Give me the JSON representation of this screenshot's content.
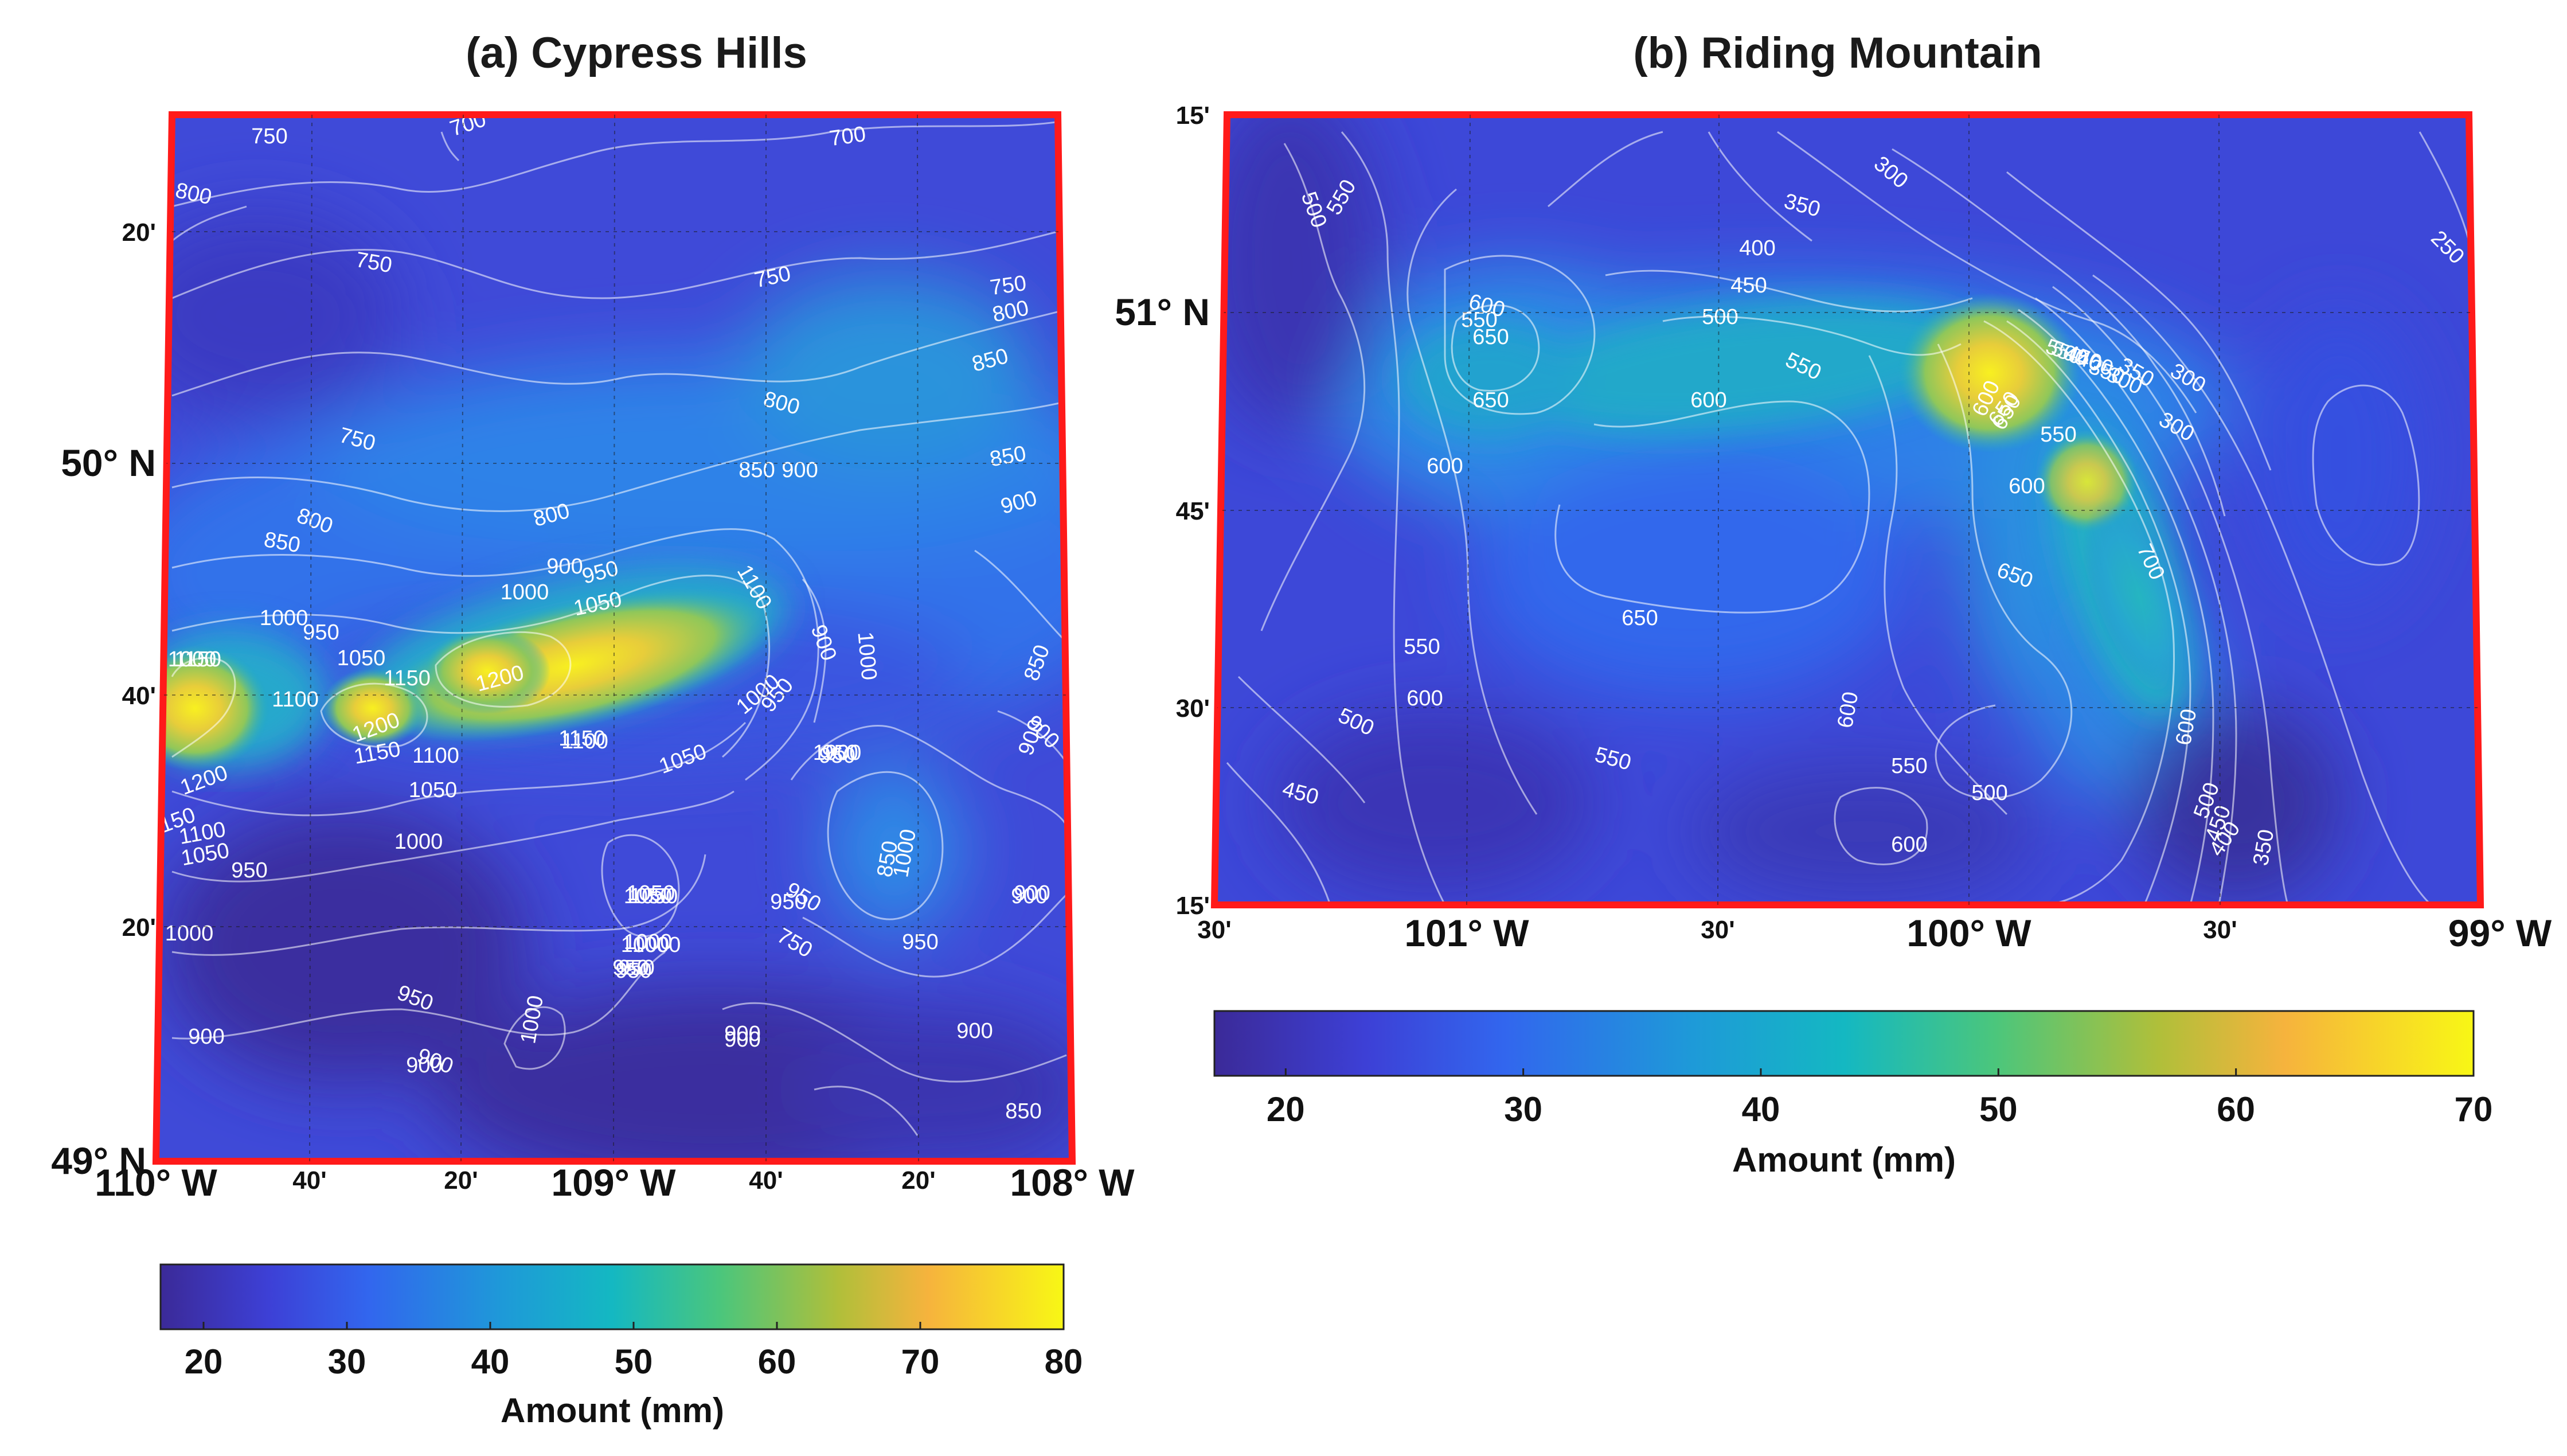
{
  "panel_a": {
    "title": "(a)  Cypress Hills",
    "lon_labels": [
      "110° W",
      "40'",
      "20'",
      "109° W",
      "40'",
      "20'",
      "108° W"
    ],
    "lon_major": [
      true,
      false,
      false,
      true,
      false,
      false,
      true
    ],
    "lat_labels": [
      "49° N",
      "20'",
      "40'",
      "50° N",
      "20'"
    ],
    "lat_major": [
      true,
      false,
      false,
      true,
      false
    ],
    "colorbar_ticks": [
      "20",
      "30",
      "40",
      "50",
      "60",
      "70",
      "80"
    ],
    "colorbar_label": "Amount (mm)",
    "contour_labels": [
      "750",
      "700",
      "700",
      "800",
      "750",
      "750",
      "750",
      "800",
      "850",
      "750",
      "800",
      "850",
      "900",
      "850",
      "800",
      "900",
      "800",
      "850",
      "900",
      "950",
      "1000",
      "1000",
      "1100",
      "1050",
      "1000",
      "900",
      "950",
      "1050",
      "1150",
      "1200",
      "1000",
      "1100",
      "1150",
      "1200",
      "1100",
      "1150",
      "1100",
      "1050",
      "1050",
      "1000",
      "950",
      "1000",
      "1050",
      "1150",
      "1200",
      "1150",
      "1100",
      "1050",
      "1000",
      "900",
      "950",
      "1000",
      "950",
      "850",
      "900",
      "950",
      "1050",
      "1000",
      "950",
      "900",
      "950",
      "950",
      "950",
      "900",
      "900",
      "900",
      "850",
      "900",
      "1000",
      "950",
      "900",
      "950",
      "900",
      "850",
      "750",
      "1000",
      "1000",
      "950",
      "1050",
      "1000",
      "900"
    ]
  },
  "panel_b": {
    "title": "(b)  Riding Mountain",
    "lon_labels": [
      "30'",
      "101° W",
      "30'",
      "100° W",
      "30'",
      "99° W"
    ],
    "lon_major": [
      false,
      true,
      false,
      true,
      false,
      true
    ],
    "lat_labels": [
      "15'",
      "30'",
      "45'",
      "51° N",
      "15'"
    ],
    "lat_major": [
      false,
      false,
      false,
      true,
      false
    ],
    "colorbar_ticks": [
      "20",
      "30",
      "40",
      "50",
      "60",
      "70"
    ],
    "colorbar_label": "Amount (mm)",
    "contour_labels": [
      "500",
      "550",
      "300",
      "350",
      "400",
      "450",
      "500",
      "550",
      "600",
      "650",
      "550",
      "600",
      "650",
      "600",
      "550",
      "650",
      "550",
      "600",
      "600",
      "550",
      "500",
      "450",
      "600",
      "650",
      "550",
      "600",
      "650",
      "700",
      "600",
      "500",
      "450",
      "400",
      "350",
      "300",
      "300",
      "250",
      "500",
      "350",
      "300",
      "350",
      "400",
      "450",
      "500",
      "550",
      "600",
      "650"
    ]
  },
  "colors": {
    "frame": "#ff1a1a",
    "colormap": [
      "#3b2a98",
      "#3d44d8",
      "#2e7de8",
      "#12b3c9",
      "#34c48a",
      "#a5c13c",
      "#f4b43e",
      "#f7f716"
    ]
  }
}
